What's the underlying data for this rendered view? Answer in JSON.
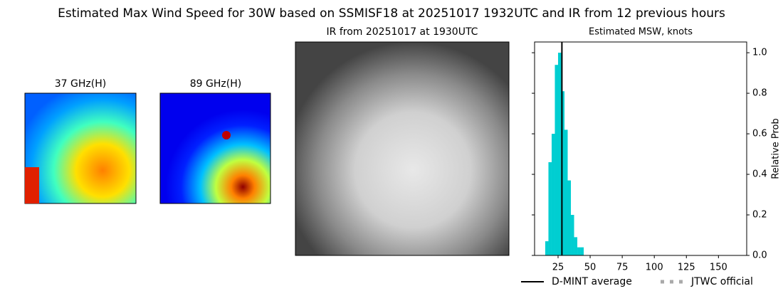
{
  "title": "Estimated Max Wind Speed for 30W based on SSMISF18 at 20251017 1932UTC and IR from 12 previous hours",
  "panels": [
    {
      "title": "37 GHz(H)"
    },
    {
      "title": "89 GHz(H)"
    },
    {
      "title": "IR from 20251017 at 1930UTC"
    }
  ],
  "chart_data": {
    "type": "histogram",
    "title": "Estimated MSW, knots",
    "y_label": "Relative Prob",
    "bins": [
      15,
      17.5,
      20,
      22.5,
      25,
      27.5,
      30,
      32.5,
      35,
      37.5,
      40,
      42.5,
      45
    ],
    "values": [
      0.07,
      0.46,
      0.6,
      0.94,
      1.0,
      0.81,
      0.62,
      0.37,
      0.2,
      0.09,
      0.04,
      0.04
    ],
    "color": "#00ced1",
    "xlim": [
      6.7,
      172
    ],
    "xticks": [
      25,
      50,
      75,
      100,
      125,
      150
    ],
    "ylim": [
      0,
      1.053
    ],
    "yticks": [
      {
        "value": 0,
        "label": "0.0"
      },
      0.2,
      0.4,
      0.6,
      0.8,
      {
        "value": 1,
        "label": "1.0"
      }
    ],
    "average": {
      "name": "D-MINT average",
      "value": 28,
      "color": "#000000"
    },
    "official": {
      "name": "JTWC official",
      "color": "#aaaaaa"
    }
  }
}
